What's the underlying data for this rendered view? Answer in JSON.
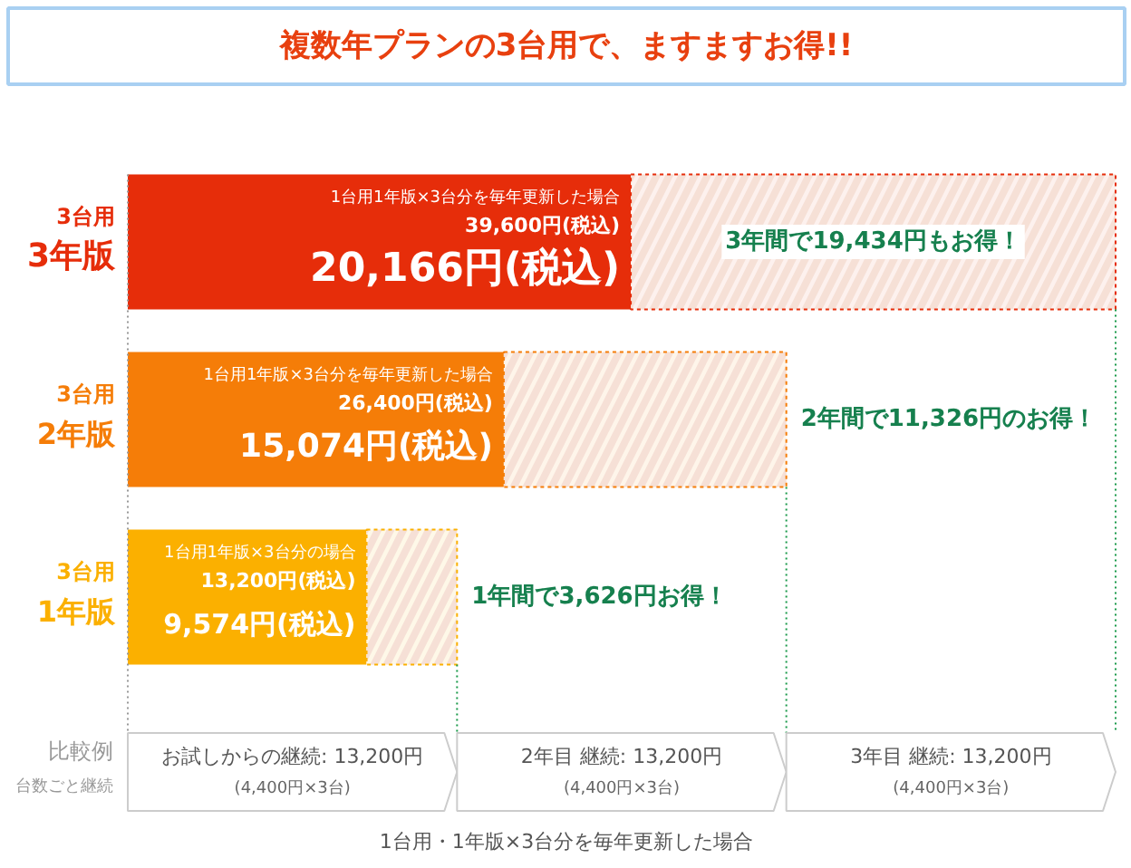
{
  "chart_data": {
    "type": "bar",
    "orientation": "horizontal",
    "stacked": true,
    "title": "複数年プランの3台用で、ますますお得!!",
    "categories": [
      "3台用 3年版",
      "3台用 2年版",
      "3台用 1年版"
    ],
    "series": [
      {
        "colors": [
          "#e62d0a",
          "#f57d08",
          "#fbb000"
        ],
        "values": [
          20166,
          15074,
          9574
        ],
        "value_labels": [
          "20,166円(税込)",
          "15,074円(税込)",
          "9,574円(税込)"
        ]
      },
      {
        "colors": [
          "#fdf1ee",
          "#fef5ea",
          "#fef8e8"
        ],
        "values": [
          19434,
          11326,
          3626
        ],
        "value_labels": [
          "3年間で19,434円もお得！",
          "2年間で11,326円のお得！",
          "1年間で3,626円お得！"
        ]
      }
    ],
    "ref_lines": [
      {
        "axis": "x",
        "value": 0,
        "color": "#999999",
        "line_style": "dotted"
      },
      {
        "axis": "x",
        "value": 13200,
        "color": "#1a9a4a",
        "line_style": "dotted"
      },
      {
        "axis": "x",
        "value": 26400,
        "color": "#1a9a4a",
        "line_style": "dotted"
      },
      {
        "axis": "x",
        "value": 39600,
        "color": "#1a9a4a",
        "line_style": "dotted"
      }
    ],
    "annotations": [
      "1台用1年版×3台分を毎年更新した場合",
      "1台用1年版×3台分を毎年更新した場合",
      "1台用1年版×3台分の場合",
      "39,600円(税込)",
      "26,400円(税込)",
      "13,200円(税込)",
      "比較例",
      "台数ごと継続",
      "お試しからの継続: 13,200円",
      "2年目 継続: 13,200円",
      "3年目 継続: 13,200円",
      "(4,400円×3台)",
      "(4,400円×3台)",
      "(4,400円×3台)",
      "1台用・1年版×3台分を毎年更新した場合"
    ]
  }
}
